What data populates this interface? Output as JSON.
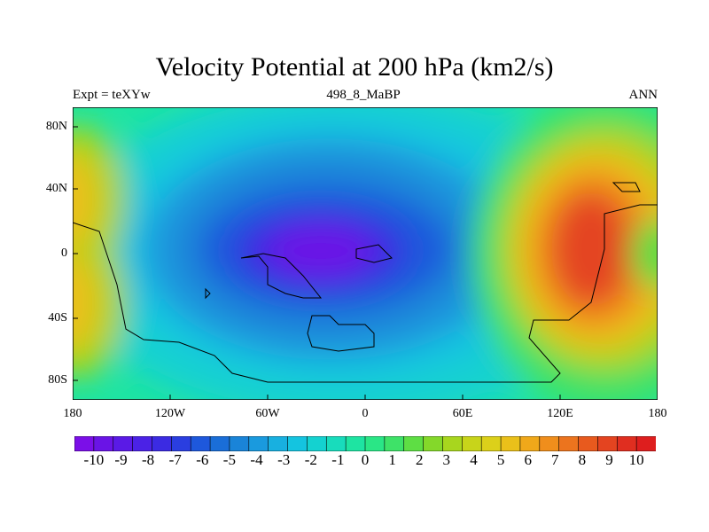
{
  "title": "Velocity Potential at 200 hPa (km2/s)",
  "left_label": "Expt = teXYw",
  "center_label": "498_8_MaBP",
  "right_label": "ANN",
  "y_ticks": [
    "80N",
    "40N",
    "0",
    "40S",
    "80S"
  ],
  "x_ticks": [
    "180",
    "120W",
    "60W",
    "0",
    "60E",
    "120E",
    "180"
  ],
  "colorbar_labels": [
    "-10",
    "-9",
    "-8",
    "-7",
    "-6",
    "-5",
    "-4",
    "-3",
    "-2",
    "-1",
    "0",
    "1",
    "2",
    "3",
    "4",
    "5",
    "6",
    "7",
    "8",
    "9",
    "10"
  ],
  "colorbar_colors": [
    "#7b0fe8",
    "#6a14e6",
    "#5a1ae6",
    "#4b22e6",
    "#3b2be2",
    "#2a3ee0",
    "#1e58dc",
    "#1a6ed8",
    "#1a84d8",
    "#1a9ade",
    "#18b0e0",
    "#14c4e0",
    "#14d2d0",
    "#18dcbc",
    "#1ee4a2",
    "#2ae686",
    "#3ee268",
    "#5ede44",
    "#84d82a",
    "#a8d61e",
    "#c8d41a",
    "#dcd01a",
    "#eac01a",
    "#f0a81a",
    "#f08e1c",
    "#ec741e",
    "#e85a1e",
    "#e44420",
    "#e02e20",
    "#de1e1e"
  ],
  "map": {
    "lon_range": [
      -180,
      180
    ],
    "lat_range": [
      -90,
      90
    ],
    "field_range": [
      -10,
      10
    ],
    "centers": [
      {
        "lon": -30,
        "lat": 0,
        "value": -10.8
      },
      {
        "lon": 150,
        "lat": 0,
        "value": 9.4
      },
      {
        "lon": -175,
        "lat": 30,
        "value": 5.5
      },
      {
        "lon": -175,
        "lat": -30,
        "value": 5.5
      }
    ]
  }
}
